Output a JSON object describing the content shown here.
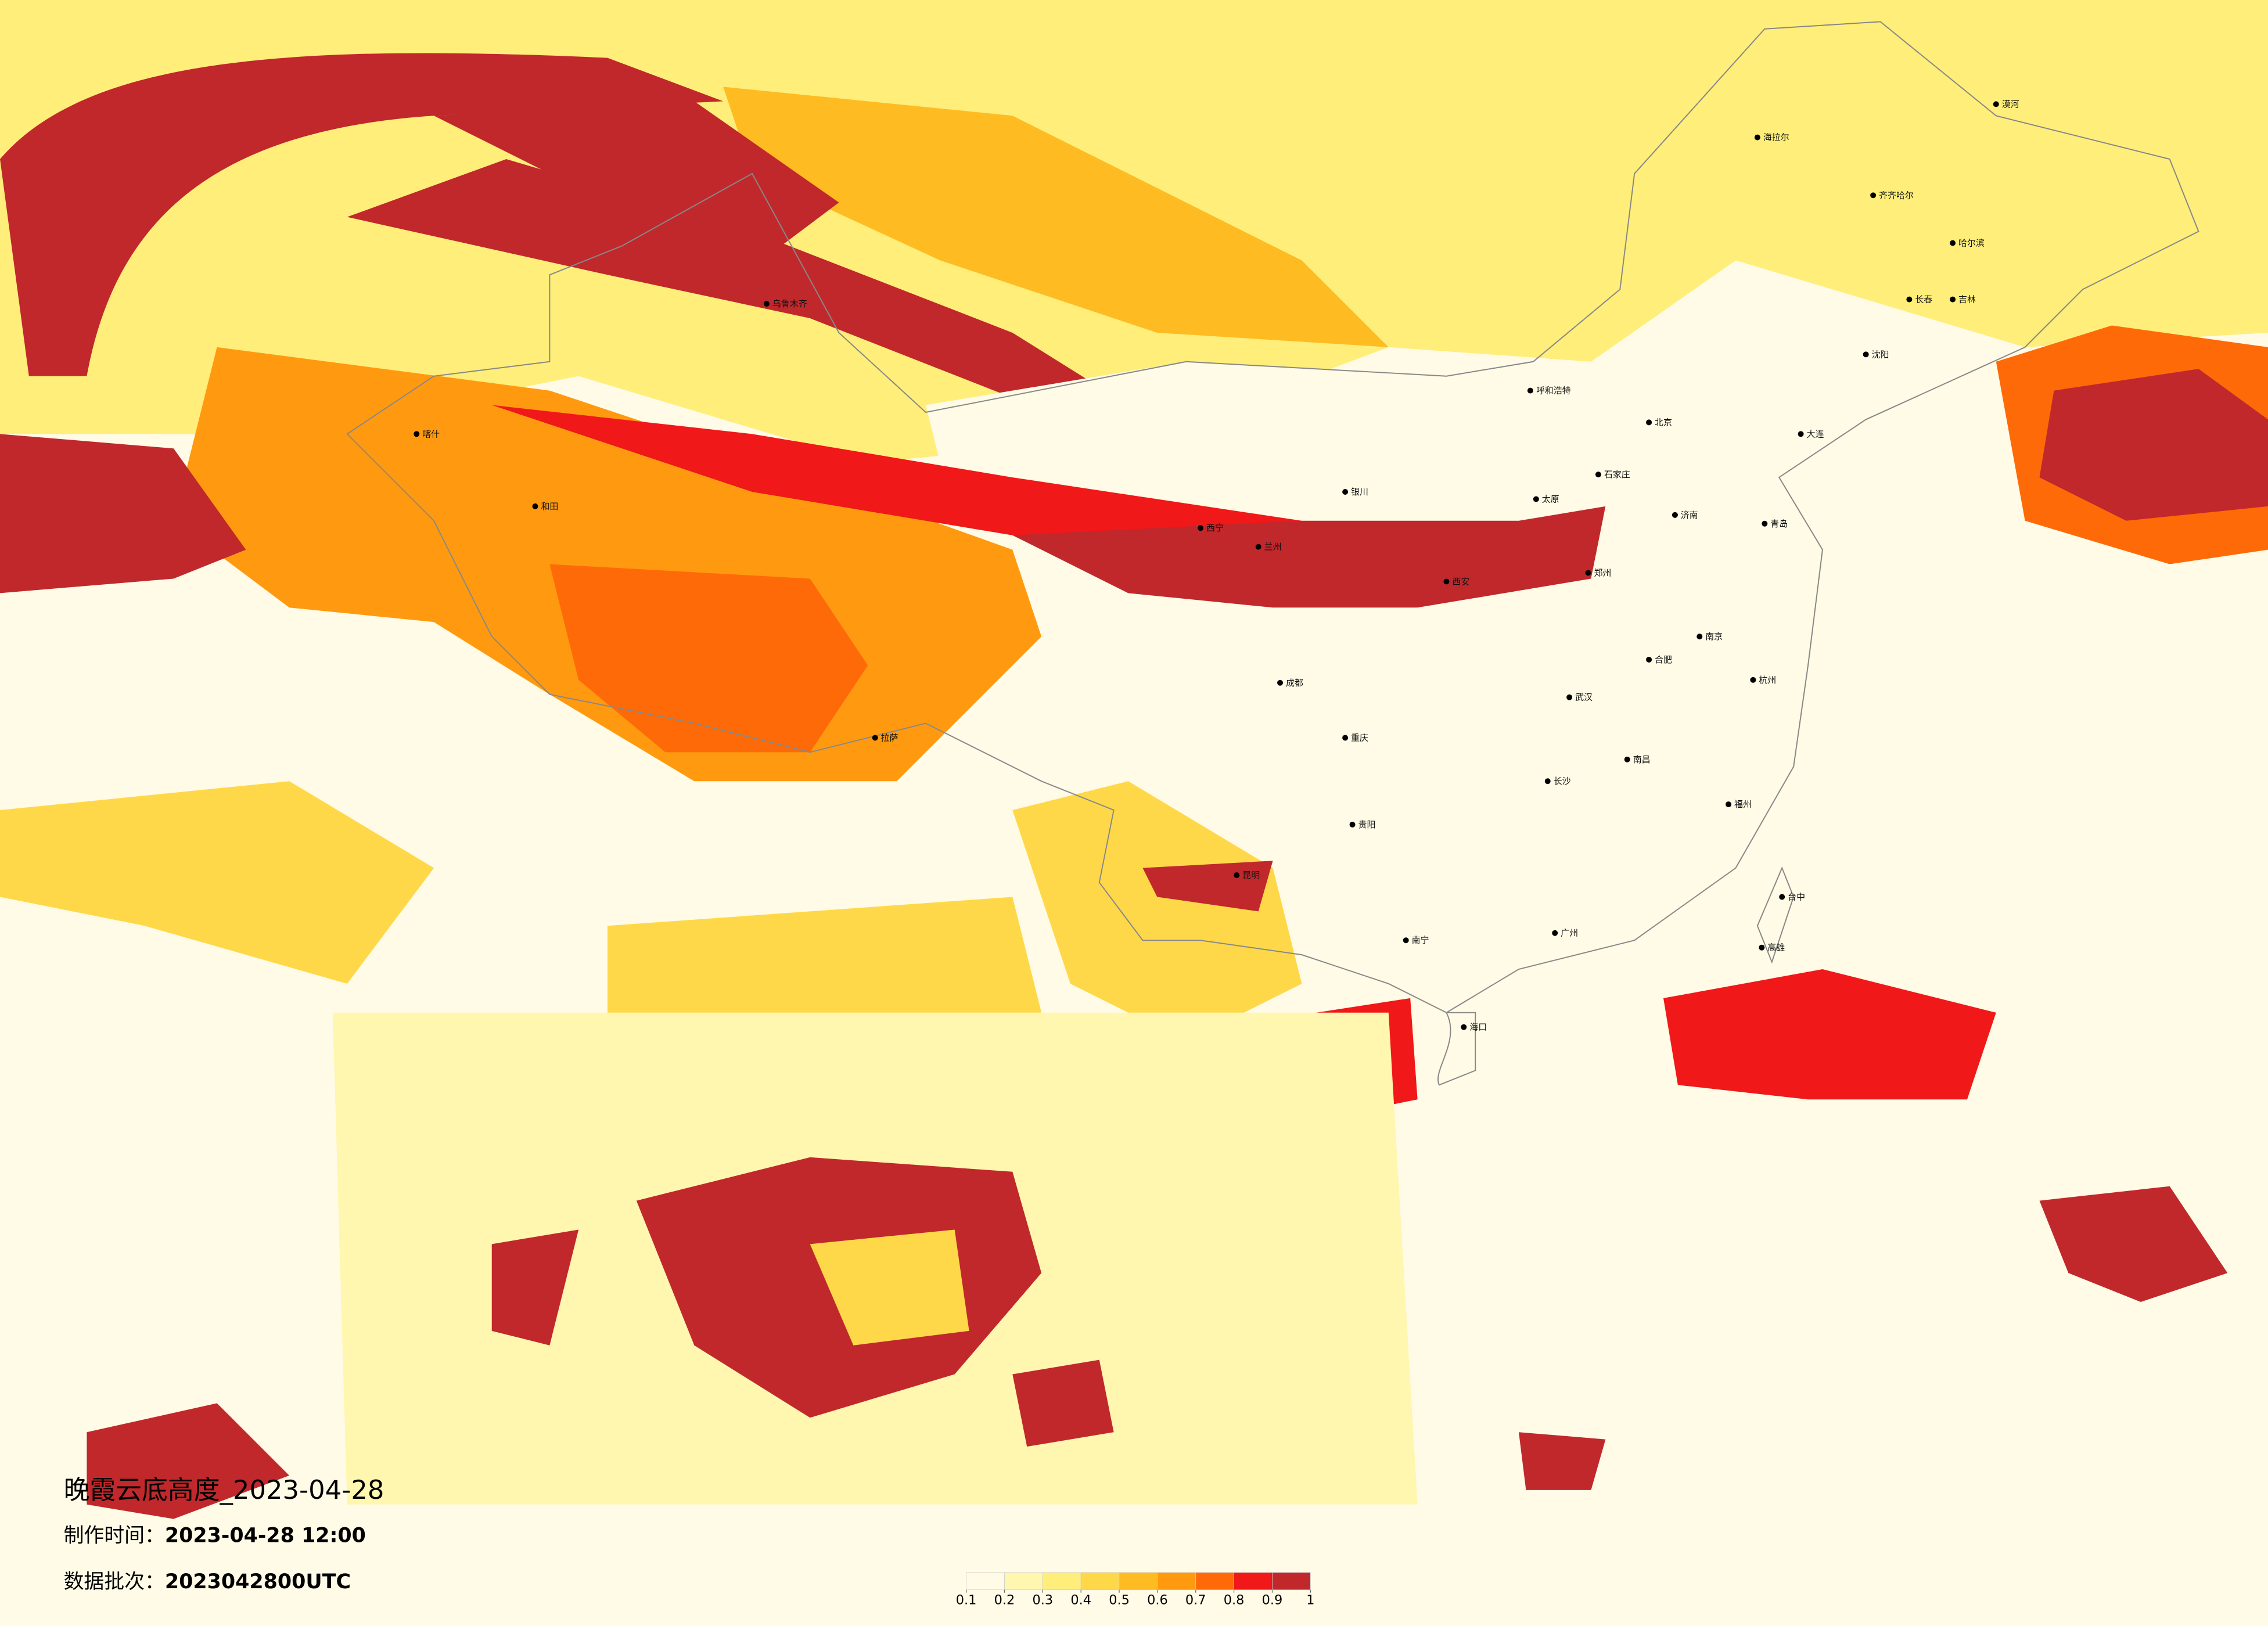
{
  "header": {
    "title": "晚霞云底高度_2023-04-28",
    "made_label": "制作时间：",
    "made_time": "2023-04-28 12:00",
    "batch_label": "数据批次：",
    "batch": "2023042800UTC"
  },
  "legend": {
    "colors": [
      "#fffbe6",
      "#fff6b0",
      "#ffee7a",
      "#ffd84a",
      "#ffbb22",
      "#ff9a10",
      "#ff6a08",
      "#f01818",
      "#c0282c"
    ],
    "ticks": [
      0.1,
      0.2,
      0.3,
      0.4,
      0.5,
      0.6,
      0.7,
      0.8,
      0.9,
      1
    ]
  },
  "cities": [
    "漠河",
    "海拉尔",
    "齐齐哈尔",
    "哈尔滨",
    "长春",
    "吉林",
    "沈阳",
    "大连",
    "呼和浩特",
    "北京",
    "石家庄",
    "太原",
    "济南",
    "青岛",
    "郑州",
    "西安",
    "兰州",
    "西宁",
    "银川",
    "乌鲁木齐",
    "喀什",
    "和田",
    "拉萨",
    "成都",
    "重庆",
    "贵阳",
    "昆明",
    "南宁",
    "广州",
    "福州",
    "杭州",
    "南京",
    "合肥",
    "武汉",
    "长沙",
    "南昌",
    "海口",
    "台中",
    "高雄"
  ]
}
